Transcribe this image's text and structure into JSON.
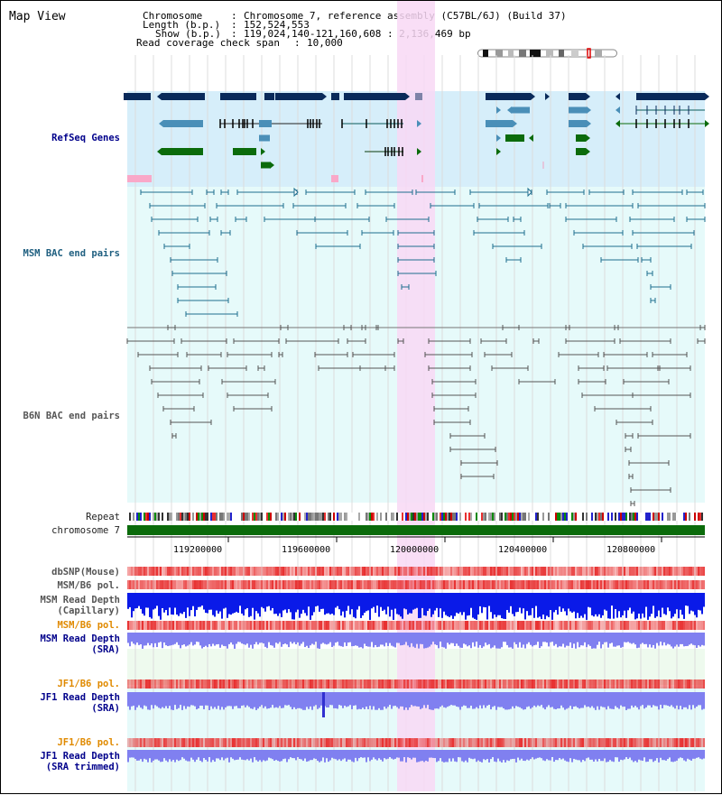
{
  "window": {
    "title": "Map View"
  },
  "header": {
    "chromosome_label": "Chromosome",
    "chromosome_value": "Chromosome 7, reference assembly (C57BL/6J) (Build 37)",
    "length_label": "Length (b.p.)",
    "length_value": "152,524,553",
    "show_label": "Show (b.p.)",
    "show_value": "119,024,140-121,160,608 : 2,136,469 bp",
    "coverage_label": "Read coverage check span",
    "coverage_value": "10,000"
  },
  "tracks": {
    "refseq": "RefSeq Genes",
    "msm_bac": "MSM BAC end pairs",
    "b6n_bac": "B6N BAC end pairs",
    "repeat": "Repeat",
    "chromosome": "chromosome 7",
    "dbsnp": "dbSNP(Mouse)",
    "msm_b6_pol": "MSM/B6 pol.",
    "msm_read_depth_cap_1": "MSM Read Depth",
    "msm_read_depth_cap_2": "(Capillary)",
    "msm_b6_pol_sra": "MSM/B6 pol.",
    "msm_read_depth_sra_1": "MSM Read Depth",
    "msm_read_depth_sra_2": "(SRA)",
    "jf1_b6_pol_1": "JF1/B6 pol.",
    "jf1_read_depth_1": "JF1 Read Depth",
    "jf1_read_depth_1b": "(SRA)",
    "jf1_b6_pol_2": "JF1/B6 pol.",
    "jf1_read_depth_2": "JF1 Read Depth",
    "jf1_read_depth_2b": "(SRA trimmed)"
  },
  "axis": {
    "ticks": [
      "119200000",
      "119600000",
      "120000000",
      "120400000",
      "120800000"
    ]
  },
  "colors": {
    "refseq_bg": "#d6eefa",
    "bac_bg": "#e6fafa",
    "highlight": "#f8d8f4",
    "gene_navy": "#0a2a5a",
    "gene_steel": "#4a8fb8",
    "gene_green": "#0b6b0b",
    "chrom_green": "#0b6b0b",
    "snp_red": "#e83030",
    "depth_blue": "#0a1ae8",
    "depth_light": "#8080f0"
  }
}
